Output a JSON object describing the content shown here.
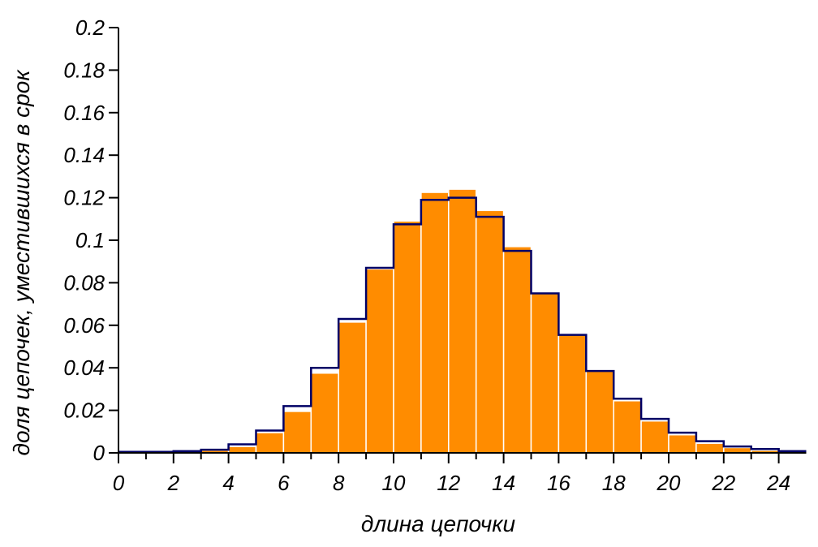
{
  "chart_data": {
    "type": "bar",
    "xlabel": "длина цепочки",
    "ylabel": "доля цепочек, уместившихся в срок",
    "xlim": [
      0,
      25
    ],
    "ylim": [
      0,
      0.2
    ],
    "x_ticks": [
      0,
      2,
      4,
      6,
      8,
      10,
      12,
      14,
      16,
      18,
      20,
      22,
      24
    ],
    "y_ticks": [
      0,
      0.02,
      0.04,
      0.06,
      0.08,
      0.1,
      0.12,
      0.14,
      0.16,
      0.18,
      0.2
    ],
    "bin_width": 1,
    "grid": false,
    "series": [
      {
        "style": "bars",
        "color": "#ff8c00",
        "x": [
          0,
          1,
          2,
          3,
          4,
          5,
          6,
          7,
          8,
          9,
          10,
          11,
          12,
          13,
          14,
          15,
          16,
          17,
          18,
          19,
          20,
          21,
          22,
          23,
          24
        ],
        "values": [
          0.0002,
          0.0003,
          0.0005,
          0.0012,
          0.003,
          0.0095,
          0.0195,
          0.0375,
          0.0615,
          0.0865,
          0.109,
          0.1225,
          0.124,
          0.114,
          0.097,
          0.075,
          0.0555,
          0.0385,
          0.0245,
          0.015,
          0.0085,
          0.0045,
          0.0025,
          0.0012,
          0.0006
        ]
      },
      {
        "style": "step",
        "color": "#000066",
        "x": [
          0,
          1,
          2,
          3,
          4,
          5,
          6,
          7,
          8,
          9,
          10,
          11,
          12,
          13,
          14,
          15,
          16,
          17,
          18,
          19,
          20,
          21,
          22,
          23,
          24
        ],
        "values": [
          0.0005,
          0.0005,
          0.0008,
          0.0015,
          0.004,
          0.0105,
          0.022,
          0.04,
          0.063,
          0.087,
          0.1075,
          0.119,
          0.12,
          0.111,
          0.095,
          0.075,
          0.0555,
          0.0385,
          0.0255,
          0.016,
          0.0095,
          0.0055,
          0.003,
          0.0018,
          0.0008
        ]
      }
    ]
  }
}
